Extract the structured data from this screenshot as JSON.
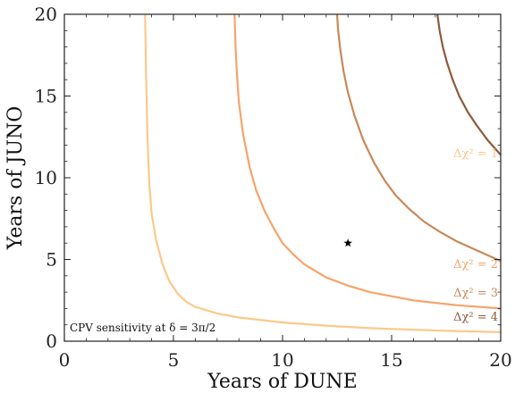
{
  "chart_data": {
    "type": "line",
    "xlabel": "Years of DUNE",
    "ylabel": "Years of JUNO",
    "xlim": [
      0,
      20
    ],
    "ylim": [
      0,
      20
    ],
    "xticks": [
      0,
      5,
      10,
      15,
      20
    ],
    "yticks": [
      0,
      5,
      10,
      15,
      20
    ],
    "annotation": "CPV sensitivity at δ = 3π/2",
    "grid": false,
    "series": [
      {
        "name": "Δχ² = 1",
        "label_text": "Δχ² = 1",
        "color": "#fbc98a",
        "x": [
          3.7,
          3.75,
          3.8,
          3.85,
          3.9,
          4.0,
          4.2,
          4.5,
          4.8,
          5.2,
          5.6,
          6.0,
          7.0,
          8.0,
          10.0,
          12.0,
          14.0,
          16.0,
          18.0,
          20.0
        ],
        "y": [
          20.0,
          16.0,
          13.0,
          11.0,
          9.5,
          7.8,
          6.2,
          4.7,
          3.7,
          2.9,
          2.4,
          2.1,
          1.7,
          1.45,
          1.15,
          0.95,
          0.8,
          0.7,
          0.62,
          0.55
        ]
      },
      {
        "name": "Δχ² = 2",
        "label_text": "Δχ² = 2",
        "color": "#f7a36b",
        "x": [
          7.8,
          7.85,
          7.9,
          8.0,
          8.2,
          8.5,
          8.8,
          9.2,
          9.6,
          10.0,
          10.5,
          11.0,
          12.0,
          13.0,
          14.0,
          15.0,
          16.0,
          18.0,
          20.0
        ],
        "y": [
          20.0,
          18.0,
          16.5,
          14.6,
          12.6,
          10.6,
          9.2,
          7.9,
          6.9,
          6.0,
          5.3,
          4.7,
          3.9,
          3.4,
          3.0,
          2.75,
          2.5,
          2.2,
          2.0
        ]
      },
      {
        "name": "Δχ² = 3",
        "label_text": "Δχ² = 3",
        "color": "#c98858",
        "x": [
          12.5,
          12.55,
          12.65,
          12.8,
          13.0,
          13.3,
          13.7,
          14.2,
          14.7,
          15.2,
          15.8,
          16.5,
          17.2,
          18.0,
          19.0,
          20.0
        ],
        "y": [
          20.0,
          19.0,
          17.8,
          16.5,
          15.2,
          13.8,
          12.3,
          10.9,
          9.8,
          8.9,
          8.1,
          7.3,
          6.7,
          6.1,
          5.5,
          4.9
        ]
      },
      {
        "name": "Δχ² = 4",
        "label_text": "Δχ² = 4",
        "color": "#8d5a3a",
        "x": [
          17.1,
          17.2,
          17.35,
          17.55,
          17.8,
          18.1,
          18.5,
          18.9,
          19.4,
          20.0
        ],
        "y": [
          20.0,
          19.0,
          18.0,
          17.0,
          16.0,
          15.0,
          14.0,
          13.2,
          12.3,
          11.4
        ]
      }
    ],
    "marker": {
      "x": 13.0,
      "y": 6.0,
      "symbol": "star"
    }
  }
}
